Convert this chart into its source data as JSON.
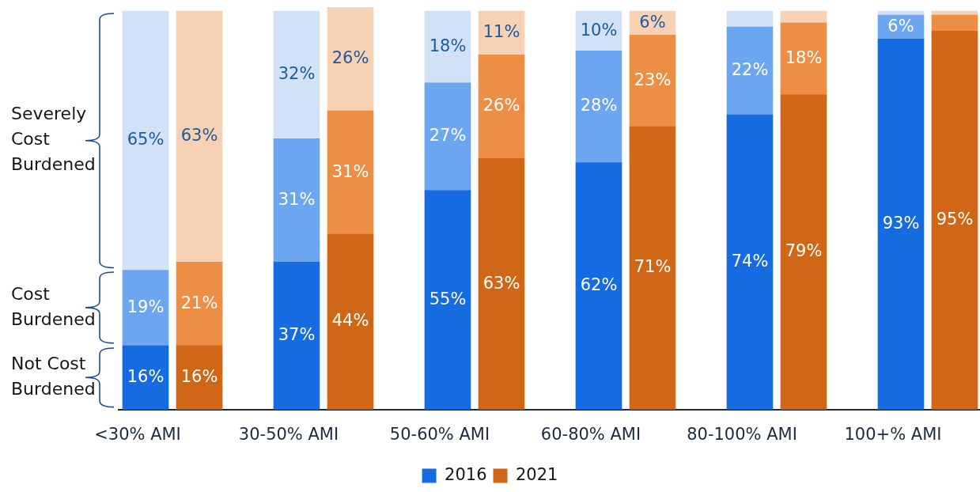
{
  "chart_data": {
    "type": "bar",
    "stacked": true,
    "categories": [
      "<30% AMI",
      null,
      "30-50% AMI",
      null,
      "50-60% AMI",
      null,
      "60-80% AMI",
      null,
      "80-100% AMI",
      null,
      "100+% AMI",
      null
    ],
    "series": [
      {
        "name": "2016",
        "color": "#176be0",
        "values": [
          16,
          null,
          37,
          null,
          55,
          null,
          62,
          null,
          74,
          null,
          93,
          null
        ],
        "value_labels": [
          "16%",
          null,
          "37%",
          null,
          "55%",
          null,
          "62%",
          null,
          "74%",
          null,
          "93%",
          null
        ]
      },
      {
        "color": "#6ca6f0",
        "values": [
          19,
          null,
          31,
          null,
          27,
          null,
          28,
          null,
          22,
          null,
          6,
          null
        ],
        "value_labels": [
          "19%",
          null,
          "31%",
          null,
          "27%",
          null,
          "28%",
          null,
          "22%",
          null,
          "6%",
          null
        ]
      },
      {
        "color": "#d0e1f8",
        "values": [
          65,
          null,
          32,
          null,
          18,
          null,
          10,
          null,
          4,
          null,
          1,
          null
        ],
        "value_labels": [
          "65%",
          null,
          "32%",
          null,
          "18%",
          null,
          "10%",
          null,
          null,
          null,
          null,
          null
        ]
      },
      {
        "name": "2021",
        "color": "#cf6717",
        "values": [
          null,
          16,
          null,
          44,
          null,
          63,
          null,
          71,
          null,
          79,
          null,
          95
        ],
        "value_labels": [
          null,
          "16%",
          null,
          "44%",
          null,
          "63%",
          null,
          "71%",
          null,
          "79%",
          null,
          "95%"
        ]
      },
      {
        "color": "#ec8f45",
        "values": [
          null,
          21,
          null,
          31,
          null,
          26,
          null,
          23,
          null,
          18,
          null,
          4
        ],
        "value_labels": [
          null,
          "21%",
          null,
          "31%",
          null,
          "26%",
          null,
          "23%",
          null,
          "18%",
          null,
          null
        ]
      },
      {
        "color": "#f6d1b3",
        "values": [
          null,
          63,
          null,
          26,
          null,
          11,
          null,
          6,
          null,
          3,
          null,
          1
        ],
        "value_labels": [
          null,
          "63%",
          null,
          "26%",
          null,
          "11%",
          null,
          "6%",
          null,
          null,
          null,
          null
        ]
      }
    ],
    "annotations": [
      "Severely Cost Burdened",
      "Cost Burdened",
      "Not Cost Burdened"
    ],
    "legend": "bottom"
  }
}
